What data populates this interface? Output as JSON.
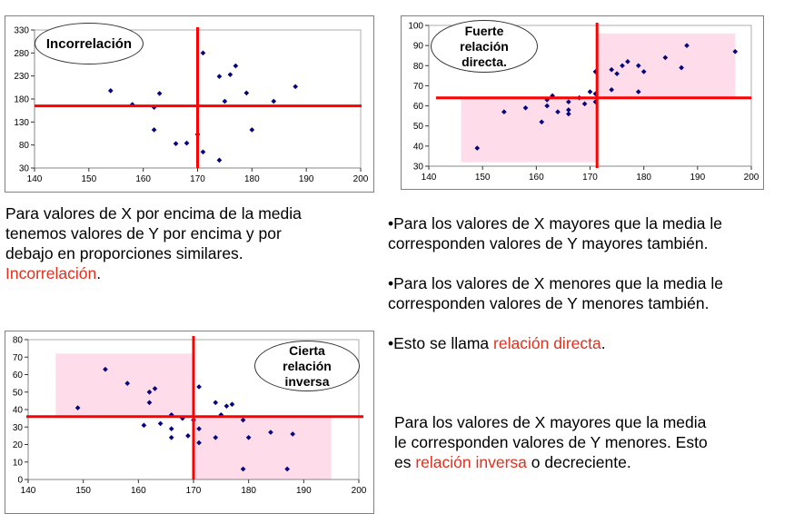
{
  "colors": {
    "mean_line": "#ff0000",
    "point": "#000080",
    "shade": "#ffdcea",
    "highlight_text": "#e0301e"
  },
  "chart_data": [
    {
      "type": "scatter",
      "annotation": "Incorrelación",
      "xlim": [
        140,
        200
      ],
      "ylim": [
        30,
        330
      ],
      "xticks": [
        140,
        150,
        160,
        170,
        180,
        190,
        200
      ],
      "yticks": [
        30,
        80,
        130,
        180,
        230,
        280,
        330
      ],
      "mean_x": 170,
      "mean_y": 165,
      "shaded_regions": [],
      "grid": false,
      "points": [
        [
          154,
          198
        ],
        [
          158,
          168
        ],
        [
          162,
          162
        ],
        [
          163,
          192
        ],
        [
          162,
          113
        ],
        [
          166,
          83
        ],
        [
          168,
          84
        ],
        [
          170,
          103
        ],
        [
          171,
          280
        ],
        [
          171,
          65
        ],
        [
          174,
          229
        ],
        [
          174,
          47
        ],
        [
          175,
          175
        ],
        [
          176,
          233
        ],
        [
          177,
          252
        ],
        [
          179,
          193
        ],
        [
          180,
          113
        ],
        [
          184,
          175
        ],
        [
          188,
          207
        ]
      ]
    },
    {
      "type": "scatter",
      "annotation": "Fuerte relación directa.",
      "xlim": [
        140,
        200
      ],
      "ylim": [
        30,
        100
      ],
      "xticks": [
        140,
        150,
        160,
        170,
        180,
        190,
        200
      ],
      "yticks": [
        30,
        40,
        50,
        60,
        70,
        80,
        90,
        100
      ],
      "mean_x": 171.3,
      "mean_y": 64,
      "shaded_regions": [
        {
          "x": [
            146,
            171.3
          ],
          "y": [
            32,
            64
          ]
        },
        {
          "x": [
            171.3,
            197
          ],
          "y": [
            64,
            96
          ]
        }
      ],
      "grid": false,
      "points": [
        [
          149,
          39
        ],
        [
          154,
          57
        ],
        [
          158,
          59
        ],
        [
          161,
          52
        ],
        [
          162,
          60
        ],
        [
          162,
          63
        ],
        [
          163,
          65
        ],
        [
          164,
          57
        ],
        [
          166,
          62
        ],
        [
          166,
          58
        ],
        [
          166,
          56
        ],
        [
          168,
          64
        ],
        [
          169,
          61
        ],
        [
          170,
          67
        ],
        [
          171,
          66
        ],
        [
          171,
          62
        ],
        [
          171,
          77
        ],
        [
          174,
          78
        ],
        [
          174,
          68
        ],
        [
          175,
          76
        ],
        [
          176,
          80
        ],
        [
          177,
          82
        ],
        [
          179,
          80
        ],
        [
          179,
          67
        ],
        [
          180,
          77
        ],
        [
          184,
          84
        ],
        [
          187,
          79
        ],
        [
          188,
          90
        ],
        [
          197,
          87
        ]
      ]
    },
    {
      "type": "scatter",
      "annotation": "Cierta relación inversa",
      "xlim": [
        140,
        200
      ],
      "ylim": [
        0,
        80
      ],
      "xticks": [
        140,
        150,
        160,
        170,
        180,
        190,
        200
      ],
      "yticks": [
        0,
        10,
        20,
        30,
        40,
        50,
        60,
        70,
        80
      ],
      "mean_x": 170,
      "mean_y": 36,
      "shaded_regions": [
        {
          "x": [
            145,
            170
          ],
          "y": [
            36,
            72
          ]
        },
        {
          "x": [
            170,
            195
          ],
          "y": [
            0,
            36
          ]
        }
      ],
      "grid": false,
      "points": [
        [
          149,
          41
        ],
        [
          154,
          63
        ],
        [
          158,
          55
        ],
        [
          161,
          31
        ],
        [
          162,
          50
        ],
        [
          162,
          44
        ],
        [
          163,
          52
        ],
        [
          164,
          32
        ],
        [
          166,
          37
        ],
        [
          166,
          29
        ],
        [
          166,
          24
        ],
        [
          168,
          35
        ],
        [
          169,
          25
        ],
        [
          170,
          34
        ],
        [
          171,
          53
        ],
        [
          171,
          29
        ],
        [
          171,
          21
        ],
        [
          174,
          44
        ],
        [
          174,
          24
        ],
        [
          175,
          37
        ],
        [
          176,
          42
        ],
        [
          177,
          43
        ],
        [
          179,
          34
        ],
        [
          179,
          6
        ],
        [
          180,
          24
        ],
        [
          184,
          27
        ],
        [
          187,
          6
        ],
        [
          188,
          26
        ]
      ]
    }
  ],
  "text": {
    "incorrelation": {
      "body": "Para valores de X por encima de la media tenemos valores de Y por encima y por debajo en proporciones similares.",
      "highlight": "Incorrelación",
      "end": "."
    },
    "direct": {
      "bullet1": "•Para los valores de X mayores que la media le corresponden valores de Y mayores también.",
      "bullet2": "•Para los valores de X menores que la media le corresponden valores de Y menores también.",
      "bullet3_pre": "•Esto se llama ",
      "bullet3_highlight": "relación directa",
      "bullet3_end": "."
    },
    "inverse": {
      "pre": "Para los valores de X mayores que la media le corresponden valores de Y menores. Esto es ",
      "highlight": "relación inversa",
      "end": " o decreciente."
    }
  }
}
